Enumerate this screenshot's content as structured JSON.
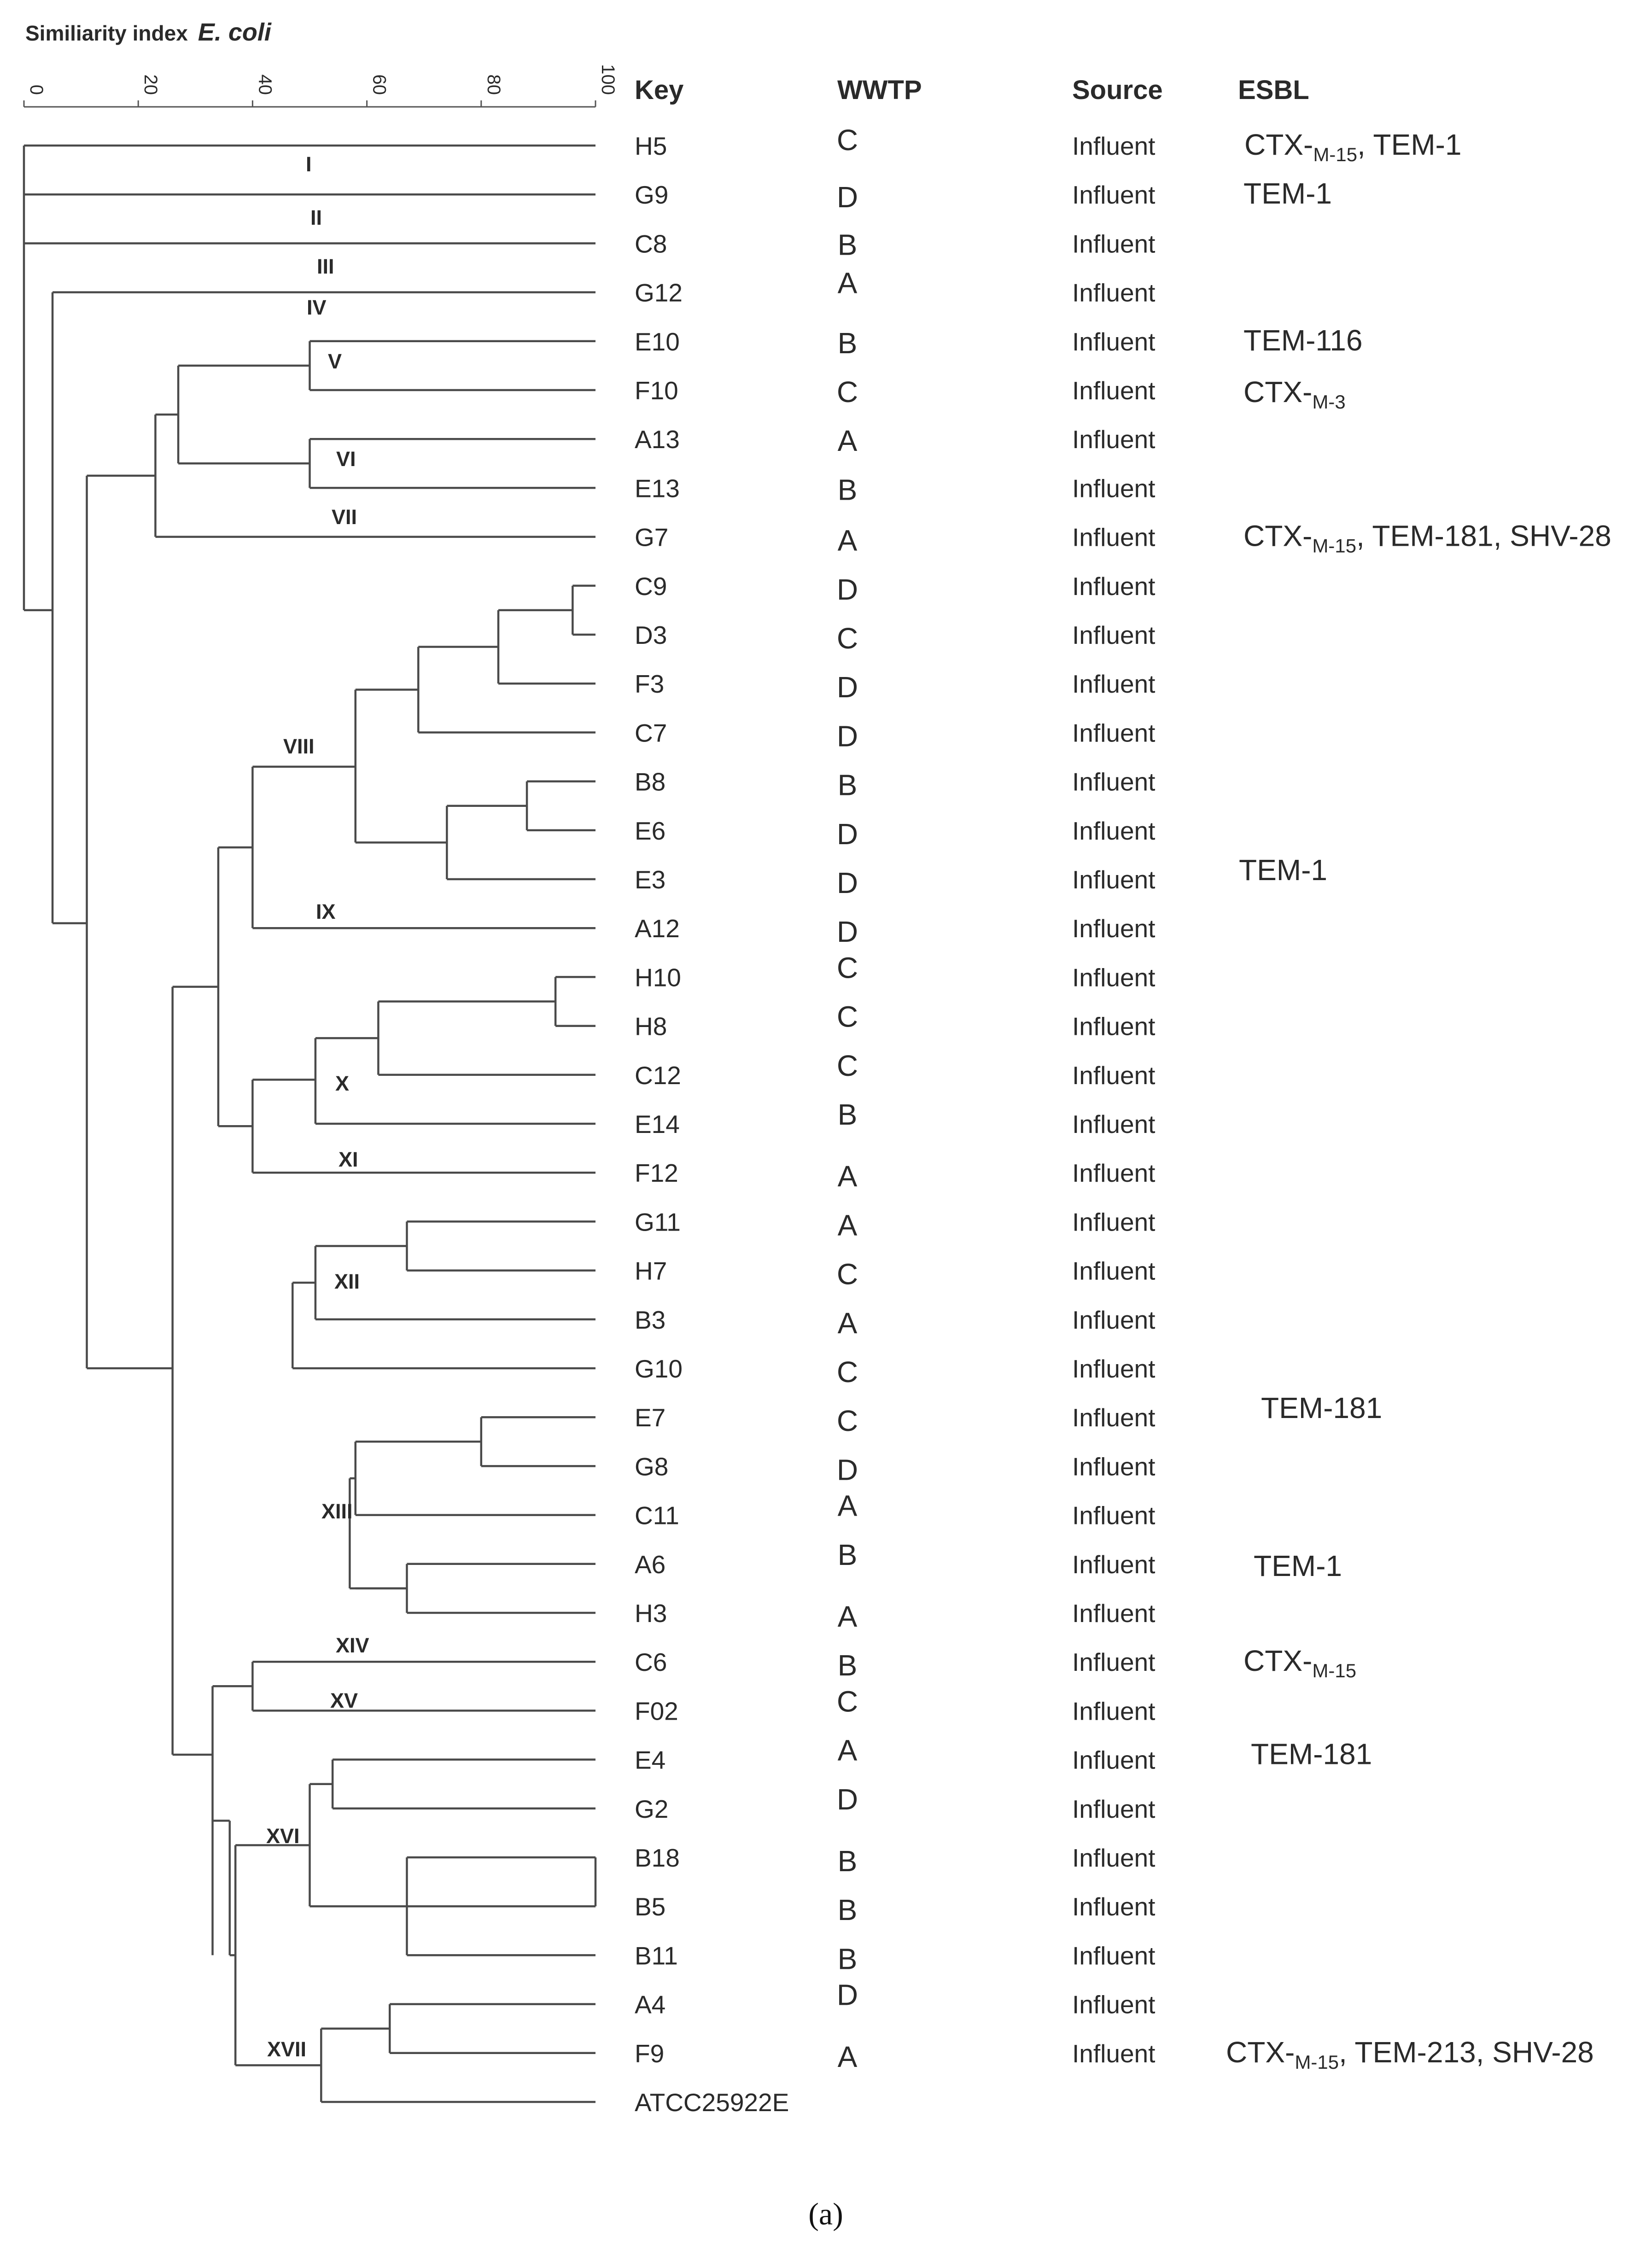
{
  "title": {
    "prefix": "Similiarity index",
    "organism": "E. coli"
  },
  "axis": {
    "ticks": [
      "0",
      "20",
      "40",
      "60",
      "80",
      "100"
    ]
  },
  "headers": {
    "key": "Key",
    "wwtp": "WWTP",
    "source": "Source",
    "esbl": "ESBL"
  },
  "rows": [
    {
      "key": "H5",
      "wwtp": "C",
      "source": "Influent",
      "esbl": "CTX-",
      "esbl_sub": "M-15",
      "esbl_rest": ", TEM-1"
    },
    {
      "key": "G9",
      "wwtp": "D",
      "source": "Influent",
      "esbl": "TEM-1"
    },
    {
      "key": "C8",
      "wwtp": "B",
      "source": "Influent",
      "esbl": ""
    },
    {
      "key": "G12",
      "wwtp": "A",
      "source": "Influent",
      "esbl": ""
    },
    {
      "key": "E10",
      "wwtp": "B",
      "source": "Influent",
      "esbl": "TEM-116"
    },
    {
      "key": "F10",
      "wwtp": "C",
      "source": "Influent",
      "esbl": "CTX-",
      "esbl_sub": "M-3"
    },
    {
      "key": "A13",
      "wwtp": "A",
      "source": "Influent",
      "esbl": ""
    },
    {
      "key": "E13",
      "wwtp": "B",
      "source": "Influent",
      "esbl": ""
    },
    {
      "key": "G7",
      "wwtp": "A",
      "source": "Influent",
      "esbl": "CTX-",
      "esbl_sub": "M-15",
      "esbl_rest": ", TEM-181, SHV-28"
    },
    {
      "key": "C9",
      "wwtp": "D",
      "source": "Influent",
      "esbl": ""
    },
    {
      "key": "D3",
      "wwtp": "C",
      "source": "Influent",
      "esbl": ""
    },
    {
      "key": "F3",
      "wwtp": "D",
      "source": "Influent",
      "esbl": ""
    },
    {
      "key": "C7",
      "wwtp": "D",
      "source": "Influent",
      "esbl": ""
    },
    {
      "key": "B8",
      "wwtp": "B",
      "source": "Influent",
      "esbl": ""
    },
    {
      "key": "E6",
      "wwtp": "D",
      "source": "Influent",
      "esbl": ""
    },
    {
      "key": "E3",
      "wwtp": "D",
      "source": "Influent",
      "esbl": "TEM-1"
    },
    {
      "key": "A12",
      "wwtp": "D",
      "source": "Influent",
      "esbl": ""
    },
    {
      "key": "H10",
      "wwtp": "C",
      "source": "Influent",
      "esbl": ""
    },
    {
      "key": "H8",
      "wwtp": "C",
      "source": "Influent",
      "esbl": ""
    },
    {
      "key": "C12",
      "wwtp": "C",
      "source": "Influent",
      "esbl": ""
    },
    {
      "key": "E14",
      "wwtp": "B",
      "source": "Influent",
      "esbl": ""
    },
    {
      "key": "F12",
      "wwtp": "A",
      "source": "Influent",
      "esbl": ""
    },
    {
      "key": "G11",
      "wwtp": "A",
      "source": "Influent",
      "esbl": ""
    },
    {
      "key": "H7",
      "wwtp": "C",
      "source": "Influent",
      "esbl": ""
    },
    {
      "key": "B3",
      "wwtp": "A",
      "source": "Influent",
      "esbl": ""
    },
    {
      "key": "G10",
      "wwtp": "C",
      "source": "Influent",
      "esbl": ""
    },
    {
      "key": "E7",
      "wwtp": "C",
      "source": "Influent",
      "esbl": "TEM-181"
    },
    {
      "key": "G8",
      "wwtp": "D",
      "source": "Influent",
      "esbl": ""
    },
    {
      "key": "C11",
      "wwtp": "A",
      "source": "Influent",
      "esbl": ""
    },
    {
      "key": "A6",
      "wwtp": "B",
      "source": "Influent",
      "esbl": "TEM-1"
    },
    {
      "key": "H3",
      "wwtp": "A",
      "source": "Influent",
      "esbl": ""
    },
    {
      "key": "C6",
      "wwtp": "B",
      "source": "Influent",
      "esbl": "CTX-",
      "esbl_sub": "M-15"
    },
    {
      "key": "F02",
      "wwtp": "C",
      "source": "Influent",
      "esbl": ""
    },
    {
      "key": "E4",
      "wwtp": "A",
      "source": "Influent",
      "esbl": "TEM-181"
    },
    {
      "key": "G2",
      "wwtp": "D",
      "source": "Influent",
      "esbl": ""
    },
    {
      "key": "B18",
      "wwtp": "B",
      "source": "Influent",
      "esbl": ""
    },
    {
      "key": "B5",
      "wwtp": "B",
      "source": "Influent",
      "esbl": ""
    },
    {
      "key": "B11",
      "wwtp": "B",
      "source": "Influent",
      "esbl": ""
    },
    {
      "key": "A4",
      "wwtp": "D",
      "source": "Influent",
      "esbl": ""
    },
    {
      "key": "F9",
      "wwtp": "A",
      "source": "Influent",
      "esbl": "CTX-",
      "esbl_sub": "M-15",
      "esbl_rest": ", TEM-213, SHV-28"
    },
    {
      "key": "ATCC25922E",
      "wwtp": "",
      "source": "",
      "esbl": ""
    }
  ],
  "clusters": [
    "I",
    "II",
    "III",
    "IV",
    "V",
    "VI",
    "VII",
    "VIII",
    "IX",
    "X",
    "XI",
    "XII",
    "XIII",
    "XIV",
    "XV",
    "XVI",
    "XVII"
  ],
  "caption": "(a)"
}
